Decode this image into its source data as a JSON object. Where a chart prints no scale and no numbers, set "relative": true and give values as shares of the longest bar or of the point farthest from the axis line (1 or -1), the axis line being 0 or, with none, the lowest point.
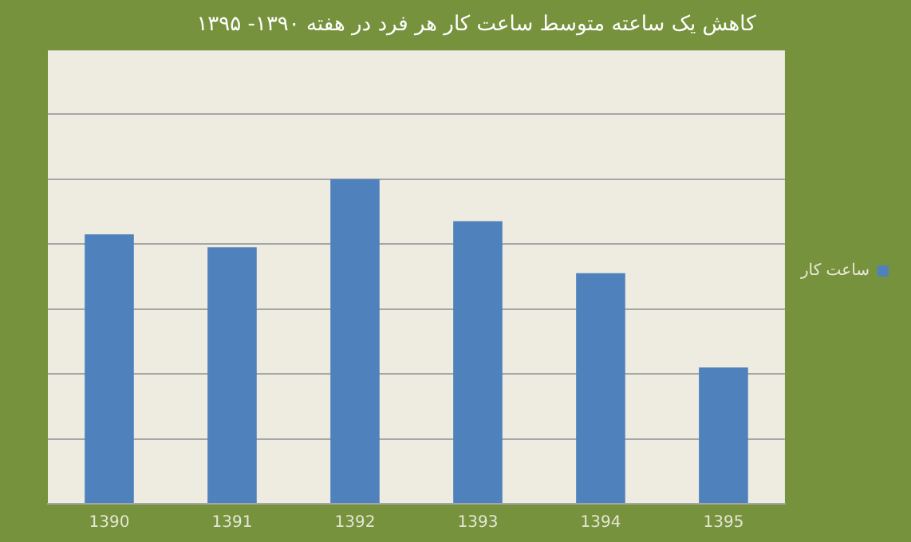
{
  "chart_data": {
    "type": "bar",
    "title": "کاهش یک ساعته متوسط ساعت کار هر فرد در هفته ۱۳۹۰- ۱۳۹۵",
    "categories": [
      "1390",
      "1391",
      "1392",
      "1393",
      "1394",
      "1395"
    ],
    "series": [
      {
        "name": "ساعت کار",
        "color": "#4f81bd",
        "values": [
          0.83,
          0.79,
          1,
          0.87,
          0.71,
          0.42
        ]
      }
    ],
    "relative": true,
    "grid": "y",
    "legend": "right"
  }
}
